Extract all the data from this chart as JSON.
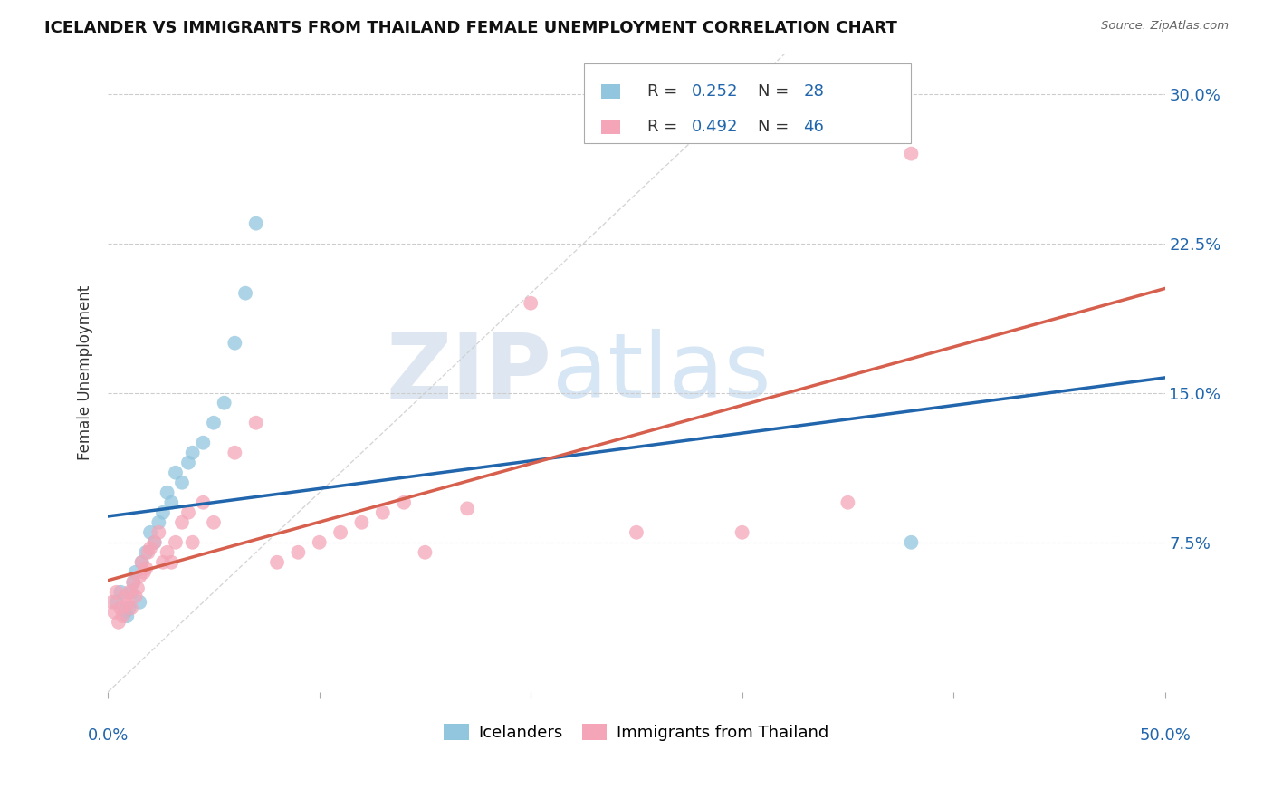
{
  "title": "ICELANDER VS IMMIGRANTS FROM THAILAND FEMALE UNEMPLOYMENT CORRELATION CHART",
  "source": "Source: ZipAtlas.com",
  "ylabel": "Female Unemployment",
  "ytick_labels": [
    "7.5%",
    "15.0%",
    "22.5%",
    "30.0%"
  ],
  "ytick_values": [
    0.075,
    0.15,
    0.225,
    0.3
  ],
  "xlim": [
    0.0,
    0.5
  ],
  "ylim": [
    0.0,
    0.32
  ],
  "watermark_zip": "ZIP",
  "watermark_atlas": "atlas",
  "legend_r_blue": "R = 0.252",
  "legend_n_blue": "N = 28",
  "legend_r_pink": "R = 0.492",
  "legend_n_pink": "N = 46",
  "legend_label_blue": "Icelanders",
  "legend_label_pink": "Immigrants from Thailand",
  "blue_color": "#92c5de",
  "pink_color": "#f4a6b8",
  "blue_line_color": "#2166ac",
  "pink_line_color": "#d6604d",
  "diagonal_color": "#cccccc",
  "text_dark": "#333333",
  "text_blue": "#2166ac",
  "blue_scatter_x": [
    0.004,
    0.006,
    0.008,
    0.009,
    0.01,
    0.011,
    0.012,
    0.013,
    0.015,
    0.016,
    0.018,
    0.02,
    0.022,
    0.024,
    0.026,
    0.028,
    0.03,
    0.032,
    0.035,
    0.038,
    0.04,
    0.045,
    0.05,
    0.055,
    0.06,
    0.065,
    0.07,
    0.38
  ],
  "blue_scatter_y": [
    0.045,
    0.05,
    0.04,
    0.038,
    0.042,
    0.05,
    0.055,
    0.06,
    0.045,
    0.065,
    0.07,
    0.08,
    0.075,
    0.085,
    0.09,
    0.1,
    0.095,
    0.11,
    0.105,
    0.115,
    0.12,
    0.125,
    0.135,
    0.145,
    0.175,
    0.2,
    0.235,
    0.075
  ],
  "pink_scatter_x": [
    0.002,
    0.003,
    0.004,
    0.005,
    0.006,
    0.007,
    0.008,
    0.009,
    0.01,
    0.011,
    0.012,
    0.013,
    0.014,
    0.015,
    0.016,
    0.017,
    0.018,
    0.019,
    0.02,
    0.022,
    0.024,
    0.026,
    0.028,
    0.03,
    0.032,
    0.035,
    0.038,
    0.04,
    0.045,
    0.05,
    0.06,
    0.07,
    0.08,
    0.09,
    0.1,
    0.11,
    0.12,
    0.13,
    0.14,
    0.15,
    0.17,
    0.2,
    0.25,
    0.3,
    0.35,
    0.38
  ],
  "pink_scatter_y": [
    0.045,
    0.04,
    0.05,
    0.035,
    0.042,
    0.038,
    0.048,
    0.044,
    0.05,
    0.042,
    0.055,
    0.048,
    0.052,
    0.058,
    0.065,
    0.06,
    0.062,
    0.07,
    0.072,
    0.075,
    0.08,
    0.065,
    0.07,
    0.065,
    0.075,
    0.085,
    0.09,
    0.075,
    0.095,
    0.085,
    0.12,
    0.135,
    0.065,
    0.07,
    0.075,
    0.08,
    0.085,
    0.09,
    0.095,
    0.07,
    0.092,
    0.195,
    0.08,
    0.08,
    0.095,
    0.27
  ]
}
